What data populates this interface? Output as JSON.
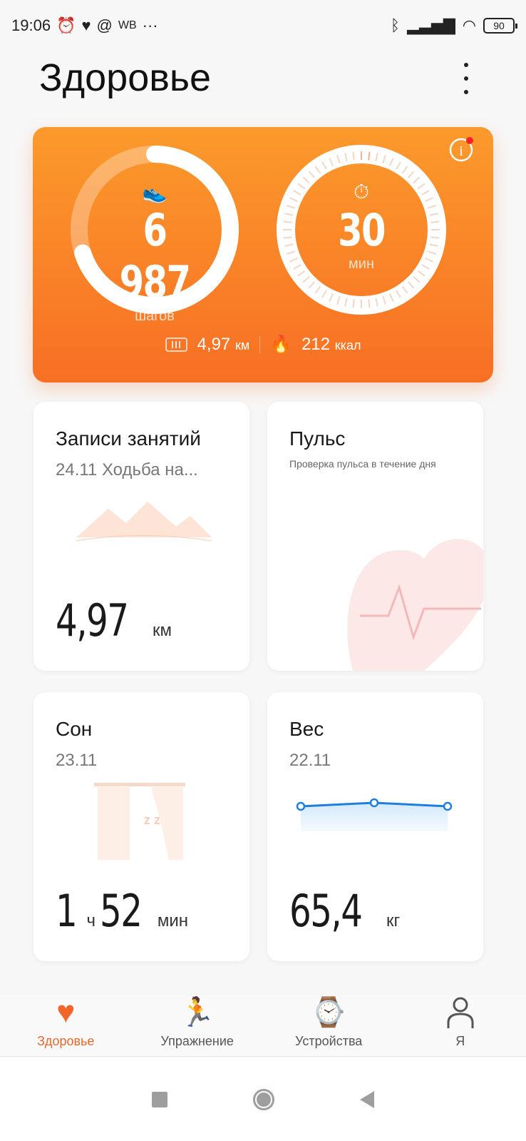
{
  "status_bar": {
    "time": "19:06",
    "carrier_label": "WB",
    "more": "···",
    "battery": "90"
  },
  "header": {
    "title": "Здоровье"
  },
  "activity": {
    "steps": "6 987",
    "steps_unit": "шагов",
    "steps_progress": 0.7,
    "minutes": "30",
    "minutes_unit": "мин",
    "minutes_progress": 0.03,
    "distance": "4,97",
    "distance_unit": "км",
    "calories": "212",
    "calories_unit": "ккал",
    "accent": "#f9872a"
  },
  "cards": {
    "workouts": {
      "title": "Записи занятий",
      "subtitle": "24.11 Ходьба на...",
      "value": "4,97",
      "unit": "км"
    },
    "pulse": {
      "title": "Пульс",
      "subtitle": "Проверка пульса в течение дня"
    },
    "sleep": {
      "title": "Сон",
      "subtitle": "23.11",
      "hours": "1",
      "hours_unit": "ч",
      "minutes": "52",
      "minutes_unit": "мин"
    },
    "weight": {
      "title": "Вес",
      "subtitle": "22.11",
      "value": "65,4",
      "unit": "кг",
      "line_color": "#1e7fe0"
    }
  },
  "bottom_nav": [
    {
      "label": "Здоровье",
      "icon": "heart-pulse-icon",
      "active": true
    },
    {
      "label": "Упражнение",
      "icon": "runner-icon"
    },
    {
      "label": "Устройства",
      "icon": "watch-icon"
    },
    {
      "label": "Я",
      "icon": "person-icon"
    }
  ]
}
